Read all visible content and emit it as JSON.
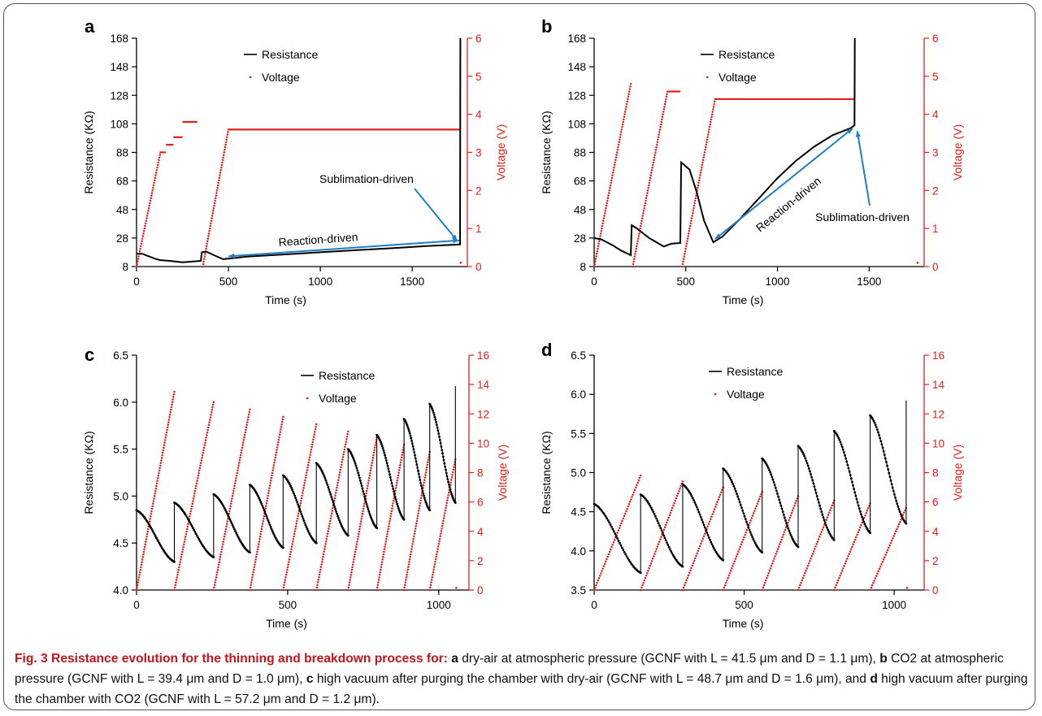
{
  "figure": {
    "caption": {
      "title": "Fig. 3 Resistance evolution for the thinning and breakdown process for:",
      "parts": [
        {
          "label": "a",
          "text": " dry-air at atmospheric pressure (GCNF with L = 41.5 μm and D = 1.1 μm),"
        },
        {
          "label": "b",
          "text": " CO2 at atmospheric pressure (GCNF with L = 39.4 μm and D = 1.0 μm),"
        },
        {
          "label": "c",
          "text": " high vacuum after purging the chamber with dry-air (GCNF with L = 48.7 μm and D = 1.6 μm), and"
        },
        {
          "label": "d",
          "text": " high vacuum after purging the chamber with CO2 (GCNF with L = 57.2 μm and D = 1.2 μm)."
        }
      ]
    }
  },
  "chart_data": [
    {
      "panel": "a",
      "type": "line",
      "xlabel": "Time (s)",
      "ylabel": "Resistance (KΩ)",
      "y2label": "Voltage (V)",
      "xlim": [
        0,
        1800
      ],
      "ylim": [
        8,
        168
      ],
      "y2lim": [
        0,
        6
      ],
      "xticks": [
        0,
        500,
        1000,
        1500
      ],
      "yticks": [
        8,
        28,
        48,
        68,
        88,
        108,
        128,
        148,
        168
      ],
      "y2ticks": [
        0,
        1,
        2,
        3,
        4,
        5,
        6
      ],
      "legend": [
        "Resistance",
        "Voltage"
      ],
      "colors": {
        "resistance": "#000000",
        "voltage": "#e0201b"
      },
      "annotations": [
        "Reaction-driven",
        "Sublimation-driven"
      ],
      "series": [
        {
          "name": "Resistance",
          "axis": "left",
          "x": [
            0,
            30,
            60,
            100,
            130,
            180,
            250,
            300,
            350,
            355,
            380,
            420,
            470,
            500,
            600,
            800,
            1000,
            1200,
            1400,
            1600,
            1760,
            1762
          ],
          "y": [
            17,
            17,
            15.5,
            13.5,
            12.5,
            12,
            11,
            11.5,
            12,
            18,
            18.5,
            16,
            13.2,
            13.5,
            15,
            16.5,
            18,
            19.5,
            21,
            22.5,
            23.5,
            168
          ]
        },
        {
          "name": "Voltage",
          "axis": "right",
          "ramps": [
            [
              0,
              130,
              0,
              3.0
            ],
            [
              360,
              500,
              0,
              3.6
            ]
          ],
          "levels": [
            [
              130,
              160,
              3.0
            ],
            [
              160,
              200,
              3.2
            ],
            [
              200,
              250,
              3.4
            ],
            [
              250,
              330,
              3.8
            ],
            [
              500,
              1760,
              3.6
            ]
          ]
        }
      ]
    },
    {
      "panel": "b",
      "type": "line",
      "xlabel": "Time (s)",
      "ylabel": "Resistance (KΩ)",
      "y2label": "Voltage (V)",
      "xlim": [
        0,
        1800
      ],
      "ylim": [
        8,
        168
      ],
      "y2lim": [
        0,
        6
      ],
      "xticks": [
        0,
        500,
        1000,
        1500
      ],
      "yticks": [
        8,
        28,
        48,
        68,
        88,
        108,
        128,
        148,
        168
      ],
      "y2ticks": [
        0,
        1,
        2,
        3,
        4,
        5,
        6
      ],
      "legend": [
        "Resistance",
        "Voltage"
      ],
      "colors": {
        "resistance": "#000000",
        "voltage": "#e0201b"
      },
      "annotations": [
        "Reaction-driven",
        "Sublimation-driven"
      ],
      "series": [
        {
          "name": "Resistance",
          "axis": "left",
          "x": [
            0,
            40,
            100,
            150,
            200,
            205,
            230,
            300,
            380,
            420,
            470,
            475,
            520,
            560,
            600,
            650,
            700,
            800,
            900,
            1000,
            1100,
            1200,
            1300,
            1400,
            1420,
            1422
          ],
          "y": [
            28,
            27,
            23,
            19,
            16,
            37,
            35,
            28,
            22,
            24,
            24.5,
            81,
            76,
            60,
            40,
            25,
            29,
            42,
            56,
            70,
            82,
            92,
            100,
            105,
            107,
            168
          ]
        },
        {
          "name": "Voltage",
          "axis": "right",
          "ramps": [
            [
              0,
              200,
              0,
              4.8
            ],
            [
              210,
              400,
              0,
              4.6
            ],
            [
              480,
              660,
              0,
              4.4
            ]
          ],
          "levels": [
            [
              400,
              470,
              4.6
            ],
            [
              660,
              1420,
              4.4
            ]
          ]
        }
      ]
    },
    {
      "panel": "c",
      "type": "line",
      "xlabel": "Time (s)",
      "ylabel": "Resistance (KΩ)",
      "y2label": "Voltage (V)",
      "xlim": [
        0,
        1100
      ],
      "ylim": [
        4.0,
        6.5
      ],
      "y2lim": [
        0,
        16
      ],
      "xticks": [
        0,
        500,
        1000
      ],
      "yticks": [
        4.0,
        4.5,
        5.0,
        5.5,
        6.0,
        6.5
      ],
      "y2ticks": [
        0,
        2,
        4,
        6,
        8,
        10,
        12,
        14,
        16
      ],
      "legend": [
        "Resistance",
        "Voltage"
      ],
      "colors": {
        "resistance": "#000000",
        "voltage": "#e0201b"
      },
      "cycles": [
        {
          "start": 0,
          "end": 125,
          "r_start": 4.85,
          "r_end": 4.3,
          "v_peak": 13.5
        },
        {
          "start": 125,
          "end": 255,
          "r_start": 4.93,
          "r_end": 4.35,
          "v_peak": 12.8
        },
        {
          "start": 255,
          "end": 375,
          "r_start": 5.02,
          "r_end": 4.4,
          "v_peak": 12.3
        },
        {
          "start": 375,
          "end": 485,
          "r_start": 5.12,
          "r_end": 4.45,
          "v_peak": 11.8
        },
        {
          "start": 485,
          "end": 595,
          "r_start": 5.22,
          "r_end": 4.5,
          "v_peak": 11.3
        },
        {
          "start": 595,
          "end": 700,
          "r_start": 5.35,
          "r_end": 4.58,
          "v_peak": 10.8
        },
        {
          "start": 700,
          "end": 795,
          "r_start": 5.5,
          "r_end": 4.66,
          "v_peak": 10.4
        },
        {
          "start": 795,
          "end": 885,
          "r_start": 5.65,
          "r_end": 4.75,
          "v_peak": 9.9
        },
        {
          "start": 885,
          "end": 970,
          "r_start": 5.82,
          "r_end": 4.85,
          "v_peak": 9.4
        },
        {
          "start": 970,
          "end": 1055,
          "r_start": 5.98,
          "r_end": 4.93,
          "v_peak": 8.9
        }
      ],
      "final_spike": {
        "x": 1055,
        "y": 6.17
      }
    },
    {
      "panel": "d",
      "type": "line",
      "xlabel": "Time (s)",
      "ylabel": "Resistance (KΩ)",
      "y2label": "Voltage (V)",
      "xlim": [
        0,
        1100
      ],
      "ylim": [
        3.5,
        6.5
      ],
      "y2lim": [
        0,
        16
      ],
      "xticks": [
        0,
        500,
        1000
      ],
      "yticks": [
        3.5,
        4.0,
        4.5,
        5.0,
        5.5,
        6.0,
        6.5
      ],
      "y2ticks": [
        0,
        2,
        4,
        6,
        8,
        10,
        12,
        14,
        16
      ],
      "legend": [
        "Resistance",
        "Voltage"
      ],
      "colors": {
        "resistance": "#000000",
        "voltage": "#e0201b"
      },
      "cycles": [
        {
          "start": 0,
          "end": 155,
          "r_start": 4.6,
          "r_end": 3.72,
          "v_peak": 7.8
        },
        {
          "start": 155,
          "end": 295,
          "r_start": 4.72,
          "r_end": 3.8,
          "v_peak": 7.4
        },
        {
          "start": 295,
          "end": 430,
          "r_start": 4.85,
          "r_end": 3.88,
          "v_peak": 7.0
        },
        {
          "start": 430,
          "end": 560,
          "r_start": 5.05,
          "r_end": 3.98,
          "v_peak": 6.7
        },
        {
          "start": 560,
          "end": 680,
          "r_start": 5.18,
          "r_end": 4.05,
          "v_peak": 6.4
        },
        {
          "start": 680,
          "end": 800,
          "r_start": 5.34,
          "r_end": 4.14,
          "v_peak": 6.1
        },
        {
          "start": 800,
          "end": 920,
          "r_start": 5.53,
          "r_end": 4.23,
          "v_peak": 5.9
        },
        {
          "start": 920,
          "end": 1040,
          "r_start": 5.73,
          "r_end": 4.35,
          "v_peak": 5.6
        }
      ],
      "final_spike": {
        "x": 1040,
        "y": 5.92
      }
    }
  ]
}
